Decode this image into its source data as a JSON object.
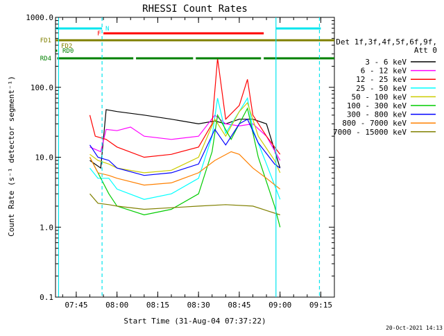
{
  "chart_data": {
    "type": "line",
    "title": "RHESSI Count Rates",
    "xlabel": "Start Time (31-Aug-04 07:37:22)",
    "ylabel": "Count Rate (s⁻¹ detector segment⁻¹)",
    "x_range": [
      "07:37:22",
      "09:20:00"
    ],
    "ylim": [
      0.1,
      1000
    ],
    "y_scale": "log",
    "x_tick_labels": [
      "07:45",
      "08:00",
      "08:15",
      "08:30",
      "08:45",
      "09:00",
      "09:15"
    ],
    "y_tick_labels": [
      "0.1",
      "1.0",
      "10.0",
      "100.0",
      "1000.0"
    ],
    "legend_position": "right",
    "legend_header": [
      "Det 1f,3f,4f,5f,6f,9f,",
      "Att 0"
    ],
    "series": [
      {
        "name": "3 - 6 keV",
        "color": "#000000",
        "x": [
          "07:50",
          "07:54",
          "07:56",
          "08:00",
          "08:10",
          "08:20",
          "08:30",
          "08:36",
          "08:40",
          "08:45",
          "08:50",
          "08:55",
          "09:00"
        ],
        "y": [
          9,
          7,
          48,
          45,
          40,
          35,
          30,
          33,
          30,
          35,
          35,
          30,
          7
        ]
      },
      {
        "name": "6 - 12 keV",
        "color": "#ff00ff",
        "x": [
          "07:50",
          "07:54",
          "07:56",
          "08:00",
          "08:05",
          "08:10",
          "08:20",
          "08:30",
          "08:36",
          "08:40",
          "08:45",
          "08:50",
          "08:55",
          "09:00"
        ],
        "y": [
          14,
          12,
          25,
          24,
          27,
          20,
          18,
          20,
          40,
          30,
          28,
          30,
          20,
          9
        ]
      },
      {
        "name": "12 - 25 keV",
        "color": "#ff0000",
        "x": [
          "07:50",
          "07:52",
          "07:56",
          "08:00",
          "08:10",
          "08:20",
          "08:30",
          "08:35",
          "08:37",
          "08:40",
          "08:45",
          "08:48",
          "08:50",
          "08:55",
          "09:00"
        ],
        "y": [
          40,
          20,
          18,
          14,
          10,
          11,
          14,
          30,
          260,
          35,
          55,
          130,
          40,
          20,
          11
        ]
      },
      {
        "name": "25 - 50 keV",
        "color": "#00ffff",
        "x": [
          "07:50",
          "07:53",
          "07:57",
          "08:00",
          "08:10",
          "08:20",
          "08:30",
          "08:35",
          "08:37",
          "08:40",
          "08:45",
          "08:48",
          "08:50",
          "08:55",
          "09:00"
        ],
        "y": [
          7,
          5,
          5,
          3.5,
          2.5,
          3,
          5,
          20,
          70,
          22,
          45,
          70,
          25,
          8,
          2.5
        ]
      },
      {
        "name": "50 - 100 keV",
        "color": "#cccc00",
        "x": [
          "07:50",
          "07:53",
          "07:57",
          "08:00",
          "08:10",
          "08:20",
          "08:30",
          "08:36",
          "08:40",
          "08:45",
          "08:48",
          "08:52",
          "08:58",
          "09:00"
        ],
        "y": [
          11,
          9,
          8,
          7,
          6,
          6.5,
          10,
          35,
          20,
          45,
          60,
          20,
          9,
          6
        ]
      },
      {
        "name": "100 - 300 keV",
        "color": "#00cc00",
        "x": [
          "07:50",
          "07:53",
          "07:57",
          "08:00",
          "08:10",
          "08:20",
          "08:30",
          "08:35",
          "08:37",
          "08:42",
          "08:45",
          "08:48",
          "08:52",
          "08:58",
          "09:00"
        ],
        "y": [
          10,
          6,
          3,
          2,
          1.5,
          1.8,
          3,
          12,
          40,
          18,
          30,
          50,
          10,
          2,
          1
        ]
      },
      {
        "name": "300 - 800 keV",
        "color": "#0000ff",
        "x": [
          "07:50",
          "07:53",
          "07:57",
          "08:00",
          "08:10",
          "08:20",
          "08:30",
          "08:36",
          "08:40",
          "08:45",
          "08:48",
          "08:52",
          "08:58",
          "09:00"
        ],
        "y": [
          15,
          10,
          9,
          7,
          5.5,
          6,
          8,
          25,
          15,
          30,
          35,
          16,
          8,
          7
        ]
      },
      {
        "name": "800 - 7000 keV",
        "color": "#ff8000",
        "x": [
          "07:50",
          "07:53",
          "07:57",
          "08:00",
          "08:10",
          "08:20",
          "08:30",
          "08:36",
          "08:42",
          "08:45",
          "08:50",
          "08:55",
          "09:00"
        ],
        "y": [
          10,
          6,
          5.5,
          5,
          4,
          4.3,
          6,
          9,
          12,
          11,
          7,
          5,
          3.5
        ]
      },
      {
        "name": "7000 - 15000 keV",
        "color": "#808000",
        "x": [
          "07:50",
          "07:53",
          "07:57",
          "08:00",
          "08:10",
          "08:20",
          "08:30",
          "08:40",
          "08:50",
          "09:00"
        ],
        "y": [
          3,
          2.2,
          2.1,
          2.0,
          1.8,
          1.9,
          2.0,
          2.1,
          2.0,
          1.5
        ]
      }
    ],
    "flag_rows": [
      {
        "label": "N",
        "color": "#00e5ee",
        "segments": [
          [
            "07:37:22",
            "07:54:30"
          ],
          [
            "08:58:30",
            "09:15:00"
          ]
        ]
      },
      {
        "label": "F",
        "color": "#ff0000",
        "segments": [
          [
            "07:55:00",
            "08:54:00"
          ]
        ]
      },
      {
        "label": "FD1",
        "color": "#808000",
        "segments": [
          [
            "07:37:22",
            "09:20:00"
          ]
        ]
      },
      {
        "label": "FD2",
        "color": "#808000",
        "segments": []
      },
      {
        "label": "RD0",
        "color": "#008000",
        "segments": [
          [
            "07:37:22",
            "07:38:00"
          ]
        ]
      },
      {
        "label": "RD4",
        "color": "#008000",
        "segments": [
          [
            "07:38:00",
            "08:06:00"
          ],
          [
            "08:07:00",
            "08:28:00"
          ],
          [
            "08:29:00",
            "08:53:00"
          ],
          [
            "08:54:00",
            "09:20:00"
          ]
        ]
      }
    ],
    "vertical_markers": [
      {
        "time": "07:38:30",
        "style": "solid",
        "color": "#00e5ee"
      },
      {
        "time": "07:54:30",
        "style": "dashed",
        "color": "#00e5ee"
      },
      {
        "time": "08:58:30",
        "style": "solid",
        "color": "#00e5ee"
      },
      {
        "time": "09:14:30",
        "style": "dashed",
        "color": "#00e5ee"
      }
    ],
    "footer_date": "20-Oct-2021 14:13"
  }
}
